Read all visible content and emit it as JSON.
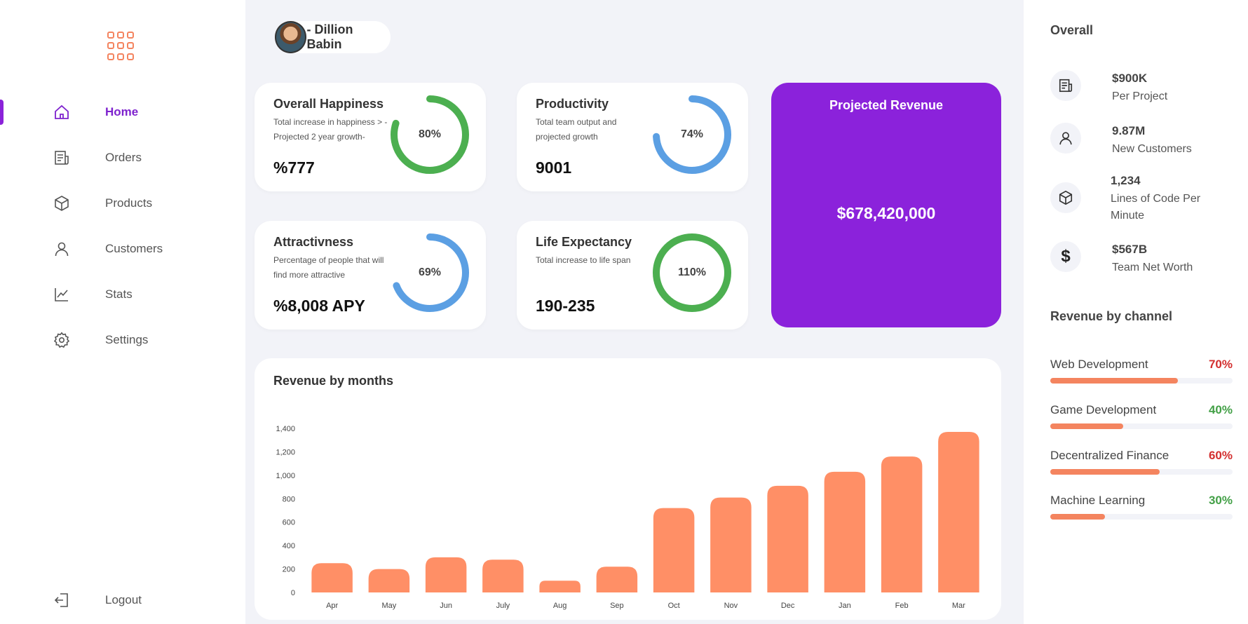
{
  "sidebar": {
    "items": [
      {
        "label": "Home",
        "icon": "home-icon",
        "active": true
      },
      {
        "label": "Orders",
        "icon": "receipt-icon"
      },
      {
        "label": "Products",
        "icon": "box-icon"
      },
      {
        "label": "Customers",
        "icon": "user-icon"
      },
      {
        "label": "Stats",
        "icon": "chart-line-icon"
      },
      {
        "label": "Settings",
        "icon": "gear-icon"
      }
    ],
    "logout_label": "Logout"
  },
  "header": {
    "user_name": "- Dillion Babin"
  },
  "cards": {
    "happiness": {
      "title": "Overall Happiness",
      "desc": "Total increase in happiness > - Projected 2 year growth-",
      "value": "%777",
      "percent_label": "80%",
      "percent": 80,
      "color": "#4caf50"
    },
    "productivity": {
      "title": "Productivity",
      "desc": "Total team output and projected growth",
      "value": "9001",
      "percent_label": "74%",
      "percent": 74,
      "color": "#5b9fe3"
    },
    "attractiveness": {
      "title": "Attractivness",
      "desc": "Percentage of people that will find more attractive",
      "value": "%8,008 APY",
      "percent_label": "69%",
      "percent": 69,
      "color": "#5b9fe3"
    },
    "life": {
      "title": "Life Expectancy",
      "desc": "Total increase to life span",
      "value": "190-235",
      "percent_label": "110%",
      "percent": 110,
      "color": "#4caf50"
    }
  },
  "projected_revenue": {
    "title": "Projected Revenue",
    "value": "$678,420,000"
  },
  "chart_title": "Revenue by months",
  "chart_data": {
    "type": "bar",
    "title": "Revenue by months",
    "categories": [
      "Apr",
      "May",
      "Jun",
      "July",
      "Aug",
      "Sep",
      "Oct",
      "Nov",
      "Dec",
      "Jan",
      "Feb",
      "Mar"
    ],
    "values": [
      250,
      200,
      300,
      280,
      100,
      220,
      720,
      810,
      910,
      1030,
      1160,
      1370
    ],
    "ylim": [
      0,
      1400
    ],
    "yticks": [
      0,
      200,
      400,
      600,
      800,
      1000,
      1200,
      1400
    ],
    "ytick_labels": [
      "0",
      "200",
      "400",
      "600",
      "800",
      "1,000",
      "1,200",
      "1,400"
    ],
    "color": "#ff8f66",
    "grid": false
  },
  "right_panel": {
    "overall_title": "Overall",
    "stats": [
      {
        "value": "$900K",
        "label": "Per Project",
        "icon": "receipt-icon"
      },
      {
        "value": "9.87M",
        "label": "New Customers",
        "icon": "user-icon"
      },
      {
        "value": "1,234",
        "label": "Lines of Code Per Minute",
        "icon": "box-icon"
      },
      {
        "value": "$567B",
        "label": "Team Net Worth",
        "icon": "dollar-icon"
      }
    ],
    "channel_title": "Revenue by channel",
    "channels": [
      {
        "name": "Web Development",
        "pct_label": "70%",
        "pct": 70,
        "color": "#d32f2f"
      },
      {
        "name": "Game Development",
        "pct_label": "40%",
        "pct": 40,
        "color": "#43a047"
      },
      {
        "name": "Decentralized Finance",
        "pct_label": "60%",
        "pct": 60,
        "color": "#d32f2f"
      },
      {
        "name": "Machine Learning",
        "pct_label": "30%",
        "pct": 30,
        "color": "#43a047"
      }
    ]
  }
}
